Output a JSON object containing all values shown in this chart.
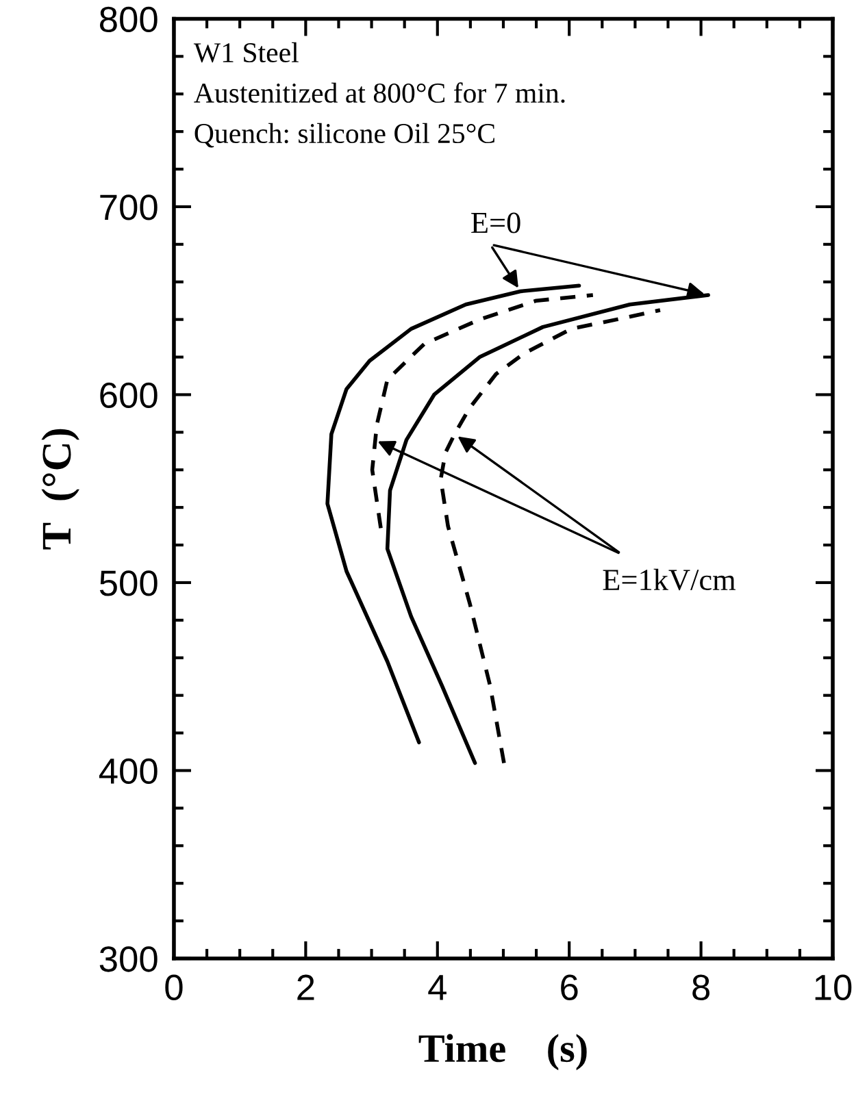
{
  "chart_data": {
    "type": "line",
    "xlabel": "Time    (s)",
    "ylabel": "T  (°C)",
    "xlim": [
      0,
      10
    ],
    "ylim": [
      300,
      800
    ],
    "xticks": [
      0,
      2,
      4,
      6,
      8,
      10
    ],
    "yticks": [
      300,
      400,
      500,
      600,
      700,
      800
    ],
    "grid": false,
    "legend": false,
    "marker": "none",
    "annotations": [
      "W1 Steel",
      "Austenitized at 800°C for 7 min.",
      "Quench: silicone Oil 25°C",
      {
        "text": "E=0",
        "x": 5.26,
        "y": 655
      },
      {
        "text": "E=1kV/cm",
        "x": 3.04,
        "y": 576
      }
    ],
    "series": [
      {
        "color": "#000000",
        "line_style": "solid",
        "x": [
          3.72,
          3.24,
          2.62,
          2.33,
          2.39,
          2.62,
          2.97,
          3.6,
          4.43,
          5.26,
          6.15
        ],
        "values": [
          415,
          458,
          506,
          542,
          579,
          603,
          618,
          635,
          648,
          655,
          658
        ]
      },
      {
        "color": "#000000",
        "line_style": "dashed",
        "x": [
          3.14,
          3.01,
          3.08,
          3.24,
          3.8,
          4.64,
          5.5,
          6.36
        ],
        "values": [
          529,
          560,
          584,
          608,
          627,
          640,
          650,
          653
        ]
      },
      {
        "color": "#000000",
        "line_style": "solid",
        "x": [
          4.57,
          4.07,
          3.6,
          3.24,
          3.28,
          3.53,
          3.95,
          4.64,
          5.6,
          6.92,
          8.11
        ],
        "values": [
          404,
          445,
          482,
          518,
          549,
          576,
          600,
          620,
          636,
          648,
          653
        ]
      },
      {
        "color": "#000000",
        "line_style": "dashed",
        "x": [
          5.01,
          4.8,
          4.49,
          4.16,
          4.05,
          4.12,
          4.26,
          4.49,
          4.89,
          5.32,
          6.03,
          6.72,
          7.38
        ],
        "values": [
          404,
          445,
          489,
          530,
          555,
          569,
          579,
          593,
          611,
          622,
          635,
          640,
          645
        ]
      }
    ]
  }
}
